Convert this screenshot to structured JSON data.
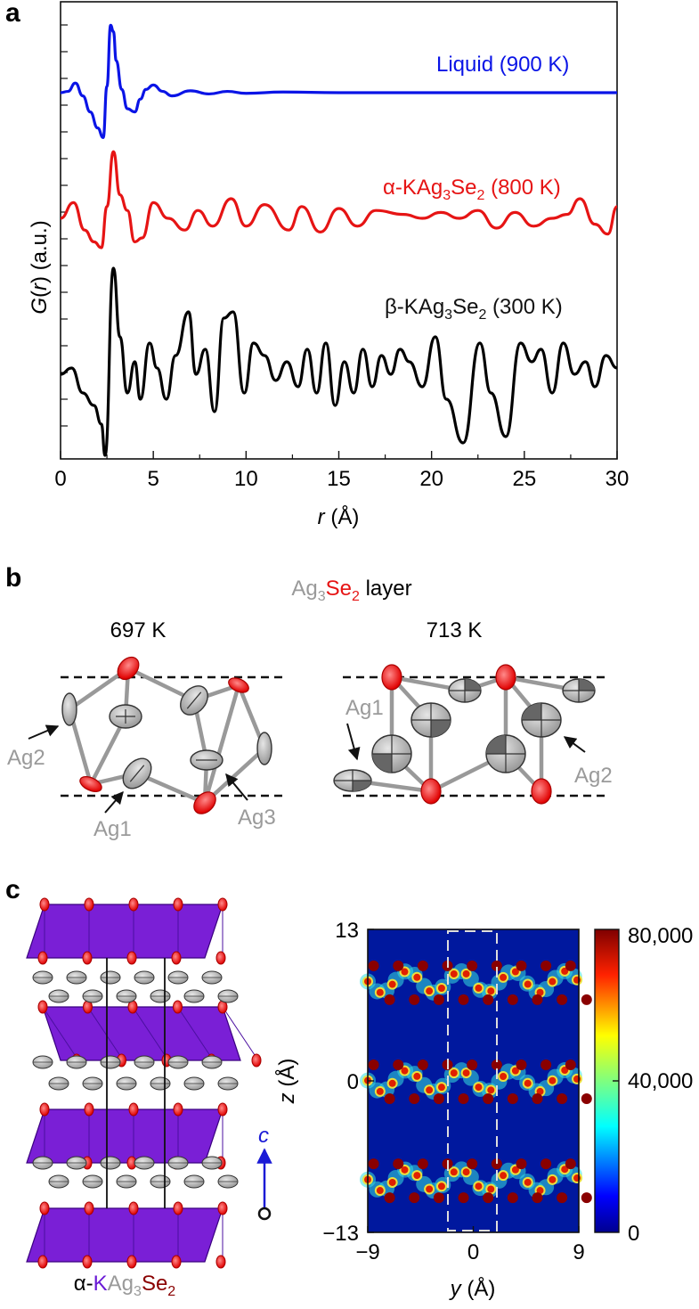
{
  "panels": {
    "a": {
      "letter": "a",
      "ylabel_main": "G",
      "ylabel_var": "r",
      "ylabel_unit": "(a.u.)",
      "xlabel_var": "r",
      "xlabel_unit": "(Å)",
      "series_labels": {
        "liquid": "Liquid (900 K)",
        "alpha_prefix": "α-KAg",
        "alpha_sub3": "3",
        "alpha_se": "Se",
        "alpha_sub2": "2",
        "alpha_suffix": " (800 K)",
        "beta_prefix": "β-KAg",
        "beta_sub3": "3",
        "beta_se": "Se",
        "beta_sub2": "2",
        "beta_suffix": " (300 K)"
      }
    },
    "b": {
      "letter": "b",
      "layer_ag": "Ag",
      "layer_sub3": "3",
      "layer_se": "Se",
      "layer_sub2": "2",
      "layer_word": " layer",
      "left_temp": "697 K",
      "right_temp": "713 K",
      "labels_left": [
        "Ag2",
        "Ag1",
        "Ag3"
      ],
      "labels_right": [
        "Ag1",
        "Ag2"
      ]
    },
    "c": {
      "letter": "c",
      "axis_c": "c",
      "formula_prefix": "α-",
      "formula_k": "K",
      "formula_ag": "Ag",
      "formula_sub3": "3",
      "formula_se": "Se",
      "formula_sub2": "2",
      "ylabel_var": "z",
      "ylabel_unit": "(Å)",
      "xlabel_var": "y",
      "xlabel_unit": "(Å)",
      "colorbar_ticks": [
        "80,000",
        "40,000",
        "0"
      ]
    }
  },
  "colors": {
    "liquid": "#0a14e6",
    "alpha": "#e61414",
    "beta": "#000000",
    "selenium": "#ee1111",
    "silver": "#bdbdbd",
    "polyhedron": "#7a1fd6",
    "c_axis": "#1a1ad6",
    "se_dark_red": "#8a0000",
    "k_purple": "#6a1ad6",
    "map_bg": "#00189e"
  },
  "chart_data": [
    {
      "type": "line",
      "panel": "a",
      "xlabel": "r (Å)",
      "ylabel": "G(r) (a.u.)",
      "xlim": [
        0,
        30
      ],
      "xticks": [
        0,
        5,
        10,
        15,
        20,
        25,
        30
      ],
      "series": [
        {
          "name": "Liquid (900 K)",
          "x": [
            0,
            0.4,
            0.8,
            1.2,
            1.6,
            2.0,
            2.3,
            2.5,
            2.7,
            2.85,
            3.0,
            3.3,
            3.6,
            4.0,
            4.3,
            4.6,
            5.0,
            5.5,
            6.0,
            7.0,
            8.0,
            9.0,
            10.0,
            12.0,
            15.0,
            20.0,
            25.0,
            30.0
          ],
          "y": [
            0.0,
            0.02,
            0.15,
            -0.05,
            -0.3,
            -0.55,
            -0.7,
            0.1,
            1.05,
            0.95,
            0.5,
            0.05,
            -0.25,
            -0.3,
            -0.1,
            0.05,
            0.12,
            0.02,
            -0.05,
            0.03,
            -0.02,
            0.02,
            -0.01,
            0.01,
            0.0,
            0.0,
            0.0,
            0.0
          ]
        },
        {
          "name": "α-KAg3Se2 (800 K)",
          "x": [
            0,
            0.7,
            1.3,
            1.8,
            2.2,
            2.5,
            2.85,
            3.2,
            3.6,
            4.0,
            4.4,
            5.0,
            5.8,
            6.7,
            7.4,
            8.2,
            9.2,
            10.0,
            11.0,
            12.3,
            13.0,
            14.0,
            15.0,
            16.0,
            17.0,
            18.5,
            19.5,
            20.5,
            21.5,
            22.5,
            23.5,
            24.5,
            25.5,
            26.5,
            27.3,
            28.0,
            28.8,
            29.5,
            30.0
          ],
          "y": [
            0.0,
            0.4,
            -0.3,
            -0.6,
            -0.75,
            0.3,
            1.7,
            0.6,
            0.2,
            -0.6,
            -0.5,
            0.4,
            0.0,
            -0.3,
            0.2,
            -0.2,
            0.5,
            -0.2,
            0.35,
            -0.3,
            0.3,
            -0.35,
            0.25,
            -0.2,
            0.2,
            0.1,
            0.0,
            0.15,
            0.0,
            0.2,
            -0.25,
            0.15,
            -0.2,
            0.0,
            0.1,
            0.5,
            -0.15,
            -0.4,
            0.3
          ]
        },
        {
          "name": "β-KAg3Se2 (300 K)",
          "x": [
            0,
            0.6,
            1.2,
            1.8,
            2.2,
            2.4,
            2.85,
            3.2,
            3.6,
            4.0,
            4.3,
            4.8,
            5.2,
            5.7,
            6.2,
            6.9,
            7.3,
            7.8,
            8.3,
            8.8,
            9.3,
            9.9,
            10.4,
            11.0,
            11.6,
            12.2,
            12.8,
            13.3,
            13.8,
            14.3,
            14.8,
            15.3,
            15.8,
            16.3,
            16.8,
            17.3,
            17.8,
            18.3,
            18.8,
            19.5,
            20.2,
            20.8,
            21.7,
            22.6,
            23.2,
            24.0,
            24.8,
            25.4,
            25.9,
            26.5,
            27.1,
            27.7,
            28.3,
            28.8,
            29.4,
            30.0
          ],
          "y": [
            0.0,
            0.1,
            -0.3,
            -0.5,
            -0.8,
            -1.3,
            1.7,
            0.6,
            -0.3,
            0.2,
            -0.4,
            0.5,
            0.1,
            -0.4,
            0.3,
            1.0,
            0.0,
            0.4,
            -0.6,
            0.9,
            1.0,
            -0.3,
            0.5,
            0.3,
            -0.1,
            0.2,
            -0.2,
            0.4,
            -0.3,
            0.5,
            -0.5,
            0.2,
            -0.3,
            0.4,
            -0.2,
            0.3,
            0.0,
            0.4,
            0.2,
            -0.2,
            0.6,
            -0.4,
            -1.1,
            0.5,
            -0.3,
            -1.0,
            0.5,
            0.2,
            0.4,
            -0.3,
            0.5,
            0.0,
            0.2,
            -0.2,
            0.3,
            0.1
          ]
        }
      ]
    },
    {
      "type": "heatmap",
      "panel": "c",
      "xlabel": "y (Å)",
      "ylabel": "z (Å)",
      "xlim": [
        -9,
        9
      ],
      "ylim": [
        -13,
        13
      ],
      "xticks": [
        -9,
        0,
        9
      ],
      "yticks": [
        -13,
        0,
        13
      ],
      "colorbar_range": [
        0,
        80000
      ],
      "colorbar_ticks": [
        0,
        40000,
        80000
      ],
      "layer_centers_z": [
        8.5,
        0,
        -8.5
      ]
    }
  ]
}
